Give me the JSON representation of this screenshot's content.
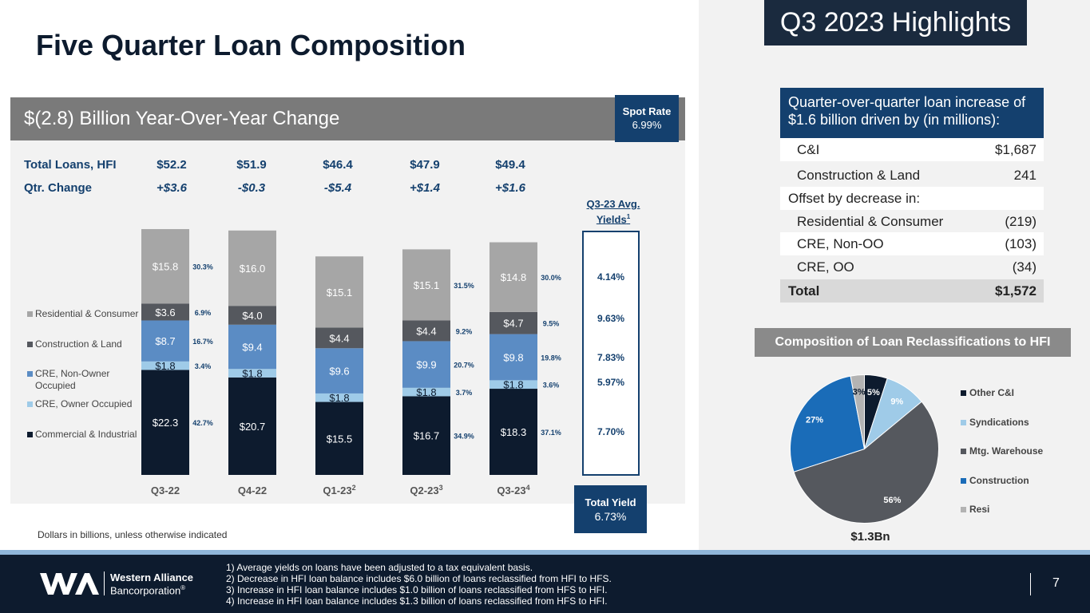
{
  "page": {
    "title": "Five Quarter Loan Composition",
    "highlights_title": "Q3 2023 Highlights",
    "page_number": "7",
    "footnote_units": "Dollars in billions, unless otherwise indicated"
  },
  "banner": {
    "change_text": "$(2.8) Billion Year-Over-Year Change",
    "spot_rate_label": "Spot Rate",
    "spot_rate_value": "6.99%"
  },
  "summary": {
    "total_label": "Total Loans, HFI",
    "change_label": "Qtr. Change",
    "totals": [
      "$52.2",
      "$51.9",
      "$46.4",
      "$47.9",
      "$49.4"
    ],
    "changes": [
      "+$3.6",
      "-$0.3",
      "-$5.4",
      "+$1.4",
      "+$1.6"
    ]
  },
  "yields": {
    "header": "Q3-23 Avg. Yields",
    "header_sup": "1",
    "values": [
      "4.14%",
      "9.63%",
      "7.83%",
      "5.97%",
      "7.70%"
    ],
    "total_label": "Total Yield",
    "total_value": "6.73%"
  },
  "chart_data": {
    "type": "bar",
    "stacked": true,
    "categories": [
      "Q3-22",
      "Q4-22",
      "Q1-23",
      "Q2-23",
      "Q3-23"
    ],
    "category_sups": [
      "",
      "",
      "2",
      "3",
      "4"
    ],
    "series": [
      {
        "name": "Commercial & Industrial",
        "color": "#0d1b2e",
        "text_color": "#ffffff",
        "values": [
          22.3,
          20.7,
          15.5,
          16.7,
          18.3
        ],
        "labels": [
          "$22.3",
          "$20.7",
          "$15.5",
          "$16.7",
          "$18.3"
        ],
        "pcts": [
          "42.7%",
          "",
          "",
          "34.9%",
          "37.1%"
        ]
      },
      {
        "name": "CRE, Owner Occupied",
        "color": "#9fcbe8",
        "text_color": "#0d1b2e",
        "values": [
          1.8,
          1.8,
          1.8,
          1.8,
          1.8
        ],
        "labels": [
          "$1.8",
          "$1.8",
          "$1.8",
          "$1.8",
          "$1.8"
        ],
        "pcts": [
          "3.4%",
          "",
          "",
          "3.7%",
          "3.6%"
        ]
      },
      {
        "name": "CRE, Non-Owner Occupied",
        "color": "#5b8cc4",
        "text_color": "#ffffff",
        "values": [
          8.7,
          9.4,
          9.6,
          9.9,
          9.8
        ],
        "labels": [
          "$8.7",
          "$9.4",
          "$9.6",
          "$9.9",
          "$9.8"
        ],
        "pcts": [
          "16.7%",
          "",
          "",
          "20.7%",
          "19.8%"
        ]
      },
      {
        "name": "Construction & Land",
        "color": "#55585e",
        "text_color": "#ffffff",
        "values": [
          3.6,
          4.0,
          4.4,
          4.4,
          4.7
        ],
        "labels": [
          "$3.6",
          "$4.0",
          "$4.4",
          "$4.4",
          "$4.7"
        ],
        "pcts": [
          "6.9%",
          "",
          "",
          "9.2%",
          "9.5%"
        ]
      },
      {
        "name": "Residential & Consumer",
        "color": "#a6a6a6",
        "text_color": "#ffffff",
        "values": [
          15.8,
          16.0,
          15.1,
          15.1,
          14.8
        ],
        "labels": [
          "$15.8",
          "$16.0",
          "$15.1",
          "$15.1",
          "$14.8"
        ],
        "pcts": [
          "30.3%",
          "",
          "",
          "31.5%",
          "30.0%"
        ]
      }
    ],
    "legend": [
      "Residential & Consumer",
      "Construction & Land",
      "CRE, Non-Owner Occupied",
      "CRE, Owner Occupied",
      "Commercial & Industrial"
    ],
    "ylim": [
      0,
      55
    ],
    "units": "$ billions"
  },
  "pie_data": {
    "type": "pie",
    "title": "Composition of Loan Reclassifications to HFI",
    "total_label": "$1.3Bn",
    "slices": [
      {
        "name": "Other C&I",
        "value": 5,
        "label": "5%",
        "color": "#0d1b2e",
        "text_color": "#ffffff"
      },
      {
        "name": "Syndications",
        "value": 9,
        "label": "9%",
        "color": "#9fcbe8",
        "text_color": "#ffffff"
      },
      {
        "name": "Mtg. Warehouse",
        "value": 56,
        "label": "56%",
        "color": "#55585e",
        "text_color": "#ffffff"
      },
      {
        "name": "Construction",
        "value": 27,
        "label": "27%",
        "color": "#1a6cb8",
        "text_color": "#ffffff"
      },
      {
        "name": "Resi",
        "value": 3,
        "label": "3%",
        "color": "#b3b3b3",
        "text_color": "#0d1b2e"
      }
    ]
  },
  "qoq": {
    "header": "Quarter-over-quarter loan increase of $1.6 billion driven by (in millions):",
    "rows": [
      {
        "label": "C&I",
        "value": "$1,687"
      },
      {
        "label": "Construction & Land",
        "value": "241"
      },
      {
        "label": "Offset by decrease in:",
        "value": ""
      },
      {
        "label": "Residential & Consumer",
        "value": "(219)"
      },
      {
        "label": "CRE, Non-OO",
        "value": "(103)"
      },
      {
        "label": "CRE, OO",
        "value": "(34)"
      },
      {
        "label": "Total",
        "value": "$1,572"
      }
    ]
  },
  "footer": {
    "company_name": "Western Alliance",
    "company_sub": "Bancorporation",
    "reg_mark": "®",
    "notes": [
      "1)  Average yields on loans have been adjusted to a tax equivalent basis.",
      "2)  Decrease in HFI loan balance includes $6.0 billion of loans reclassified from HFI to HFS.",
      "3)  Increase in HFI loan balance includes $1.0 billion of loans reclassified from HFS to HFI.",
      "4)  Increase in HFI loan balance includes $1.3 billion of loans reclassified from HFS to HFI."
    ]
  }
}
